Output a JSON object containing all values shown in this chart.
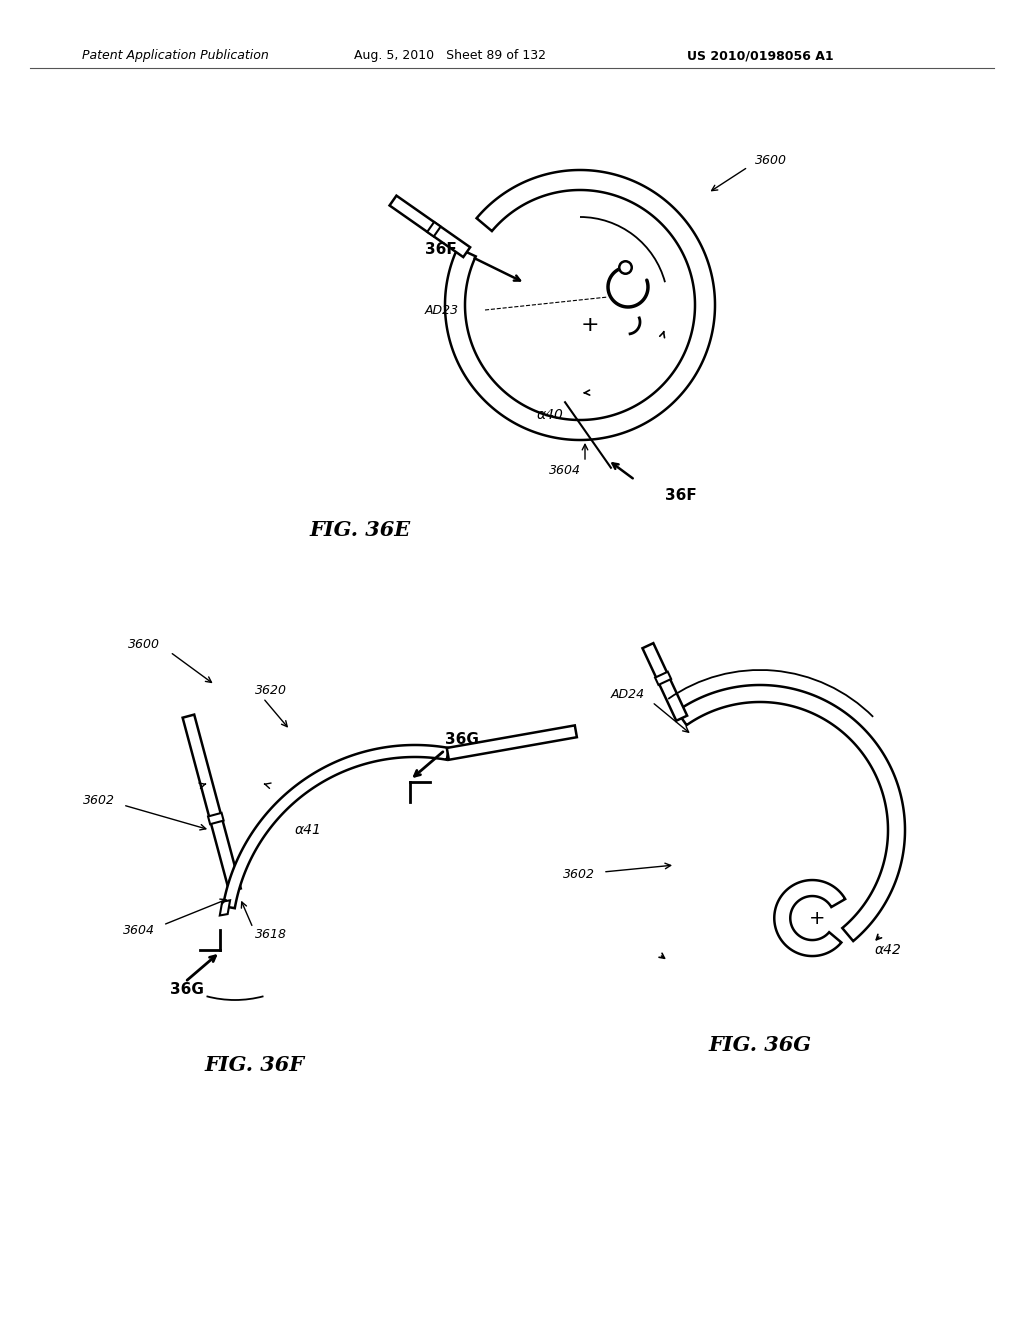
{
  "bg_color": "#ffffff",
  "header_left": "Patent Application Publication",
  "header_mid": "Aug. 5, 2010   Sheet 89 of 132",
  "header_right": "US 2010/0198056 A1",
  "fig36e": {
    "title": "FIG. 36E",
    "label_3600": "3600",
    "label_3604": "3604",
    "label_36F_top": "36F",
    "label_36F_bot": "36F",
    "label_AD23": "AD23",
    "label_a40": "α40"
  },
  "fig36f": {
    "title": "FIG. 36F",
    "label_3600": "3600",
    "label_3602": "3602",
    "label_3604": "3604",
    "label_3618": "3618",
    "label_3620": "3620",
    "label_36G_top": "36G",
    "label_36G_bot": "36G",
    "label_a41": "α41"
  },
  "fig36g": {
    "title": "FIG. 36G",
    "label_3602": "3602",
    "label_AD24": "AD24",
    "label_a42": "α42"
  },
  "line_color": "#000000",
  "text_color": "#000000"
}
